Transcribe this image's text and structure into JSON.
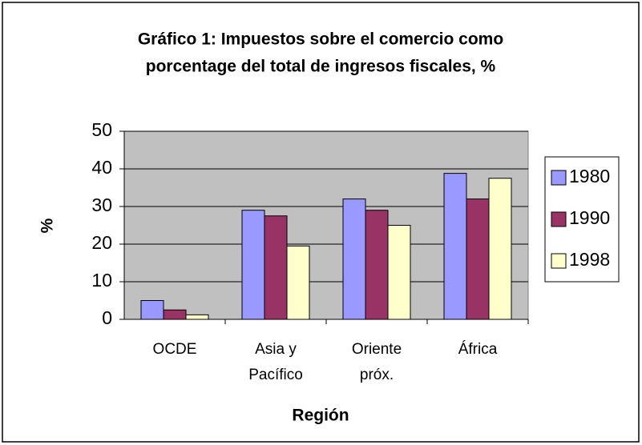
{
  "chart_data": {
    "type": "bar",
    "title": [
      "Gráfico 1: Impuestos sobre el comercio como",
      "porcentage del total de ingresos fiscales, %"
    ],
    "x_label": "Región",
    "y_label": "%",
    "categories": [
      [
        "OCDE"
      ],
      [
        "Asia y",
        "Pacífico"
      ],
      [
        "Oriente",
        "próx."
      ],
      [
        "África"
      ]
    ],
    "series": [
      {
        "name": "1980",
        "color": "#9999ff",
        "values": [
          5,
          29,
          32,
          38.8
        ]
      },
      {
        "name": "1990",
        "color": "#993366",
        "values": [
          2.5,
          27.5,
          29,
          32
        ]
      },
      {
        "name": "1998",
        "color": "#ffffcc",
        "values": [
          1.2,
          19.5,
          25,
          37.5
        ]
      }
    ],
    "ylim": [
      0,
      50
    ],
    "yticks": [
      0,
      10,
      20,
      30,
      40,
      50
    ],
    "grid": true,
    "legend": "right"
  }
}
